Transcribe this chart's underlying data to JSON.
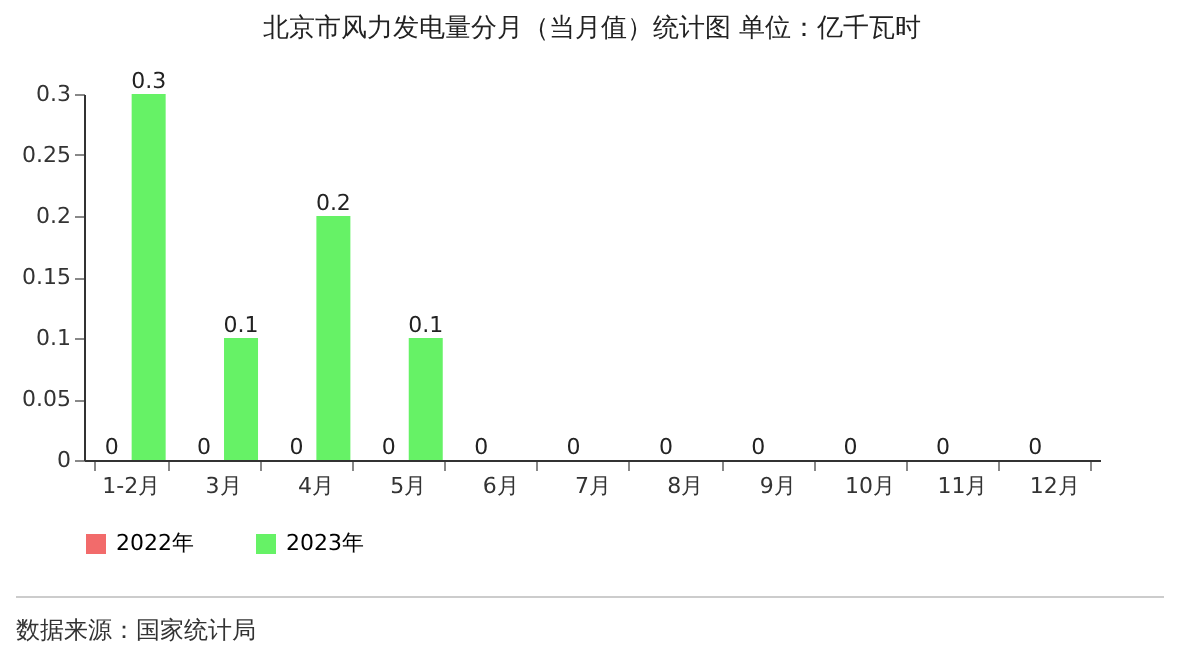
{
  "chart_data": {
    "type": "bar",
    "title": "北京市风力发电量分月（当月值）统计图 单位：亿千瓦时",
    "categories": [
      "1-2月",
      "3月",
      "4月",
      "5月",
      "6月",
      "7月",
      "8月",
      "9月",
      "10月",
      "11月",
      "12月"
    ],
    "series": [
      {
        "name": "2022年",
        "color": "#f26b6b",
        "values": [
          0,
          0,
          0,
          0,
          0,
          0,
          0,
          0,
          0,
          0,
          0
        ]
      },
      {
        "name": "2023年",
        "color": "#66f266",
        "values": [
          0.3,
          0.1,
          0.2,
          0.1,
          null,
          null,
          null,
          null,
          null,
          null,
          null
        ]
      }
    ],
    "ylim": [
      0,
      0.3
    ],
    "yticks": [
      0,
      0.05,
      0.1,
      0.15,
      0.2,
      0.25,
      0.3
    ],
    "data_labels": true,
    "legend": "bottom",
    "annotations": [
      "数据来源：国家统计局"
    ]
  }
}
